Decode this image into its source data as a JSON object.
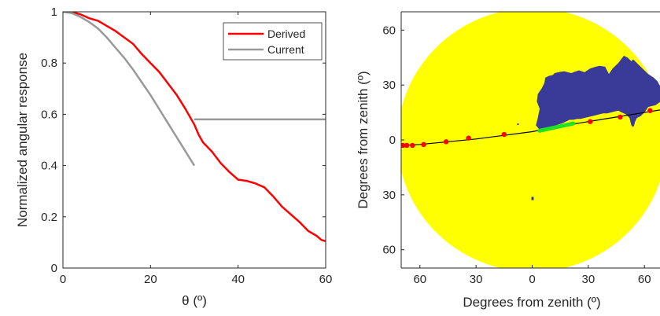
{
  "chart_data": [
    {
      "type": "line",
      "xlabel": "θ (º)",
      "ylabel": "Normalized angular response",
      "xlim": [
        0,
        60
      ],
      "ylim": [
        0,
        1
      ],
      "xticks": [
        0,
        20,
        40,
        60
      ],
      "xtick_labels": [
        "0",
        "20",
        "40",
        "60"
      ],
      "yticks": [
        0,
        0.2,
        0.4,
        0.6,
        0.8,
        1
      ],
      "ytick_labels": [
        "0",
        "0.2",
        "0.4",
        "0.6",
        "0.8",
        "1"
      ],
      "grid": false,
      "legend_position": "top-right",
      "colors": {
        "Derived": "#ff0000",
        "Current": "#999999"
      },
      "series": [
        {
          "name": "Derived",
          "x": [
            0,
            2,
            4,
            6,
            8,
            10,
            12,
            14,
            16,
            18,
            20,
            22,
            24,
            26,
            28,
            30,
            31,
            32,
            34,
            36,
            38,
            40,
            42,
            44,
            46,
            48,
            50,
            52,
            54,
            56,
            58,
            59,
            60
          ],
          "y": [
            1.0,
            1.0,
            0.99,
            0.975,
            0.965,
            0.945,
            0.925,
            0.9,
            0.875,
            0.835,
            0.8,
            0.765,
            0.72,
            0.675,
            0.62,
            0.56,
            0.52,
            0.49,
            0.455,
            0.41,
            0.375,
            0.345,
            0.34,
            0.33,
            0.315,
            0.28,
            0.24,
            0.21,
            0.18,
            0.145,
            0.125,
            0.11,
            0.105
          ]
        },
        {
          "name": "Current",
          "segments": [
            {
              "x": [
                0,
                2,
                4,
                6,
                8,
                10,
                12,
                14,
                16,
                18,
                20,
                22,
                24,
                26,
                28,
                30
              ],
              "y": [
                1.0,
                0.995,
                0.98,
                0.96,
                0.935,
                0.9,
                0.86,
                0.82,
                0.775,
                0.725,
                0.675,
                0.62,
                0.565,
                0.51,
                0.455,
                0.4
              ]
            },
            {
              "x": [
                30,
                60
              ],
              "y": [
                0.58,
                0.58
              ]
            }
          ]
        }
      ]
    },
    {
      "type": "scatter",
      "xlabel": "Degrees from zenith (º)",
      "ylabel": "Degrees from zenith (º)",
      "xlim": [
        -70,
        70
      ],
      "ylim": [
        -70,
        70
      ],
      "xticks": [
        -60,
        -30,
        0,
        30,
        60
      ],
      "xtick_labels": [
        "60",
        "30",
        "0",
        "30",
        "60"
      ],
      "yticks": [
        60,
        30,
        0,
        -30,
        -60
      ],
      "ytick_labels": [
        "60",
        "30",
        "0",
        "30",
        "60"
      ],
      "grid": false,
      "colors": {
        "sky": "#ffff00",
        "obstruction": "#3a3a99",
        "sun_path": "#000000",
        "sun_positions": "#ff0000",
        "highlight": "#22e022"
      },
      "sky_radius": 72,
      "obstruction_polygon": {
        "x": [
          2,
          3,
          4,
          2.5,
          3,
          5,
          6.5,
          7,
          9,
          11,
          12,
          14,
          17,
          19,
          21,
          22,
          25,
          28,
          31,
          34,
          36,
          39,
          40,
          41,
          43,
          46,
          49,
          51,
          52,
          53,
          54,
          55,
          56,
          58,
          60,
          62,
          65,
          67,
          68,
          70,
          70,
          66,
          62,
          60,
          58,
          56,
          55,
          54.5,
          54,
          53,
          52,
          50,
          48,
          46,
          44,
          42,
          40,
          38,
          36,
          34,
          32,
          30,
          28,
          26,
          24,
          22,
          20,
          18,
          16,
          14,
          12,
          10,
          9,
          8,
          7,
          6,
          5,
          4.5,
          4
        ],
        "y": [
          8,
          12,
          17,
          21,
          25,
          28,
          31,
          34,
          35,
          35.5,
          36.5,
          37,
          37.5,
          37,
          36.5,
          37,
          38,
          37,
          39,
          40,
          40.5,
          40,
          38,
          36,
          39,
          42,
          46,
          45,
          44,
          43,
          44,
          43,
          42,
          40,
          38,
          36,
          34,
          32,
          30,
          28,
          22,
          19,
          18,
          15,
          13,
          12,
          10,
          8,
          7,
          8,
          12,
          14,
          15,
          16,
          15.5,
          15,
          14.5,
          14.5,
          14,
          13.5,
          13,
          12.5,
          12,
          11.5,
          11.5,
          11,
          11,
          10,
          9,
          8.5,
          7.5,
          7,
          6,
          6.5,
          6,
          5,
          5,
          4.5,
          5.5
        ]
      },
      "sun_path": {
        "x": [
          -72,
          -60,
          -45,
          -30,
          -15,
          0,
          15,
          30,
          45,
          60,
          72
        ],
        "y": [
          -3,
          -2.5,
          -1,
          0.5,
          2.5,
          4.5,
          7.5,
          10,
          12.5,
          15,
          17
        ]
      },
      "sun_positions": {
        "x": [
          -71,
          -69,
          -67,
          -64,
          -58,
          -46,
          -34,
          -15,
          31,
          47,
          63,
          70
        ],
        "y": [
          -3,
          -3,
          -3,
          -3,
          -2.5,
          -1,
          1,
          3,
          10,
          12.5,
          16,
          17
        ]
      },
      "highlight_segment": {
        "x": [
          4,
          22
        ],
        "y": [
          5,
          9
        ]
      }
    }
  ]
}
